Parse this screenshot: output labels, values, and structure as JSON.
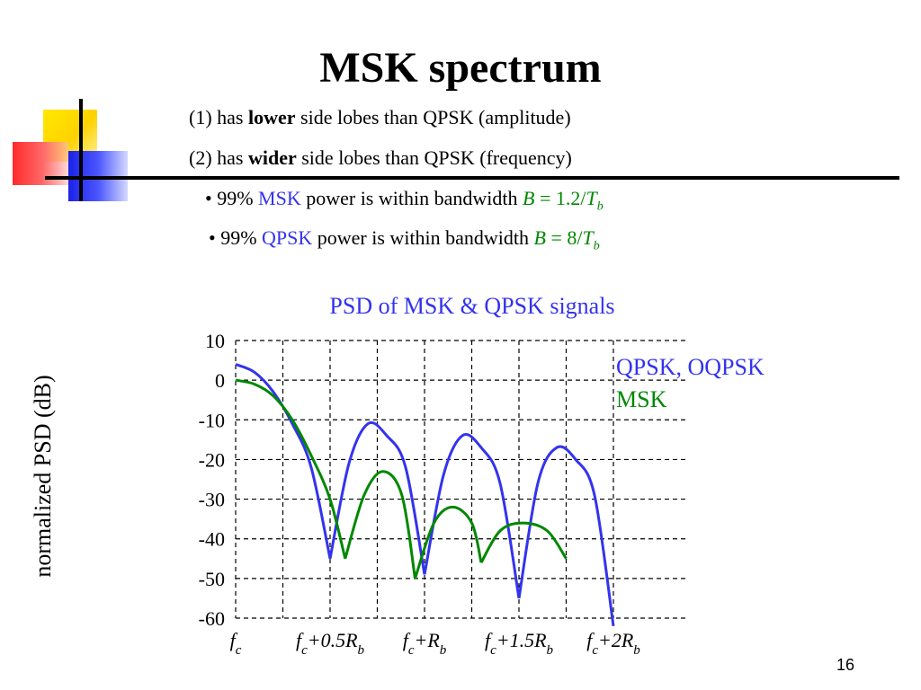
{
  "slide": {
    "title": "MSK spectrum",
    "page_number": "16"
  },
  "bullets": {
    "line1": {
      "pre": "(1) has ",
      "bold": "lower",
      "post": " side lobes than QPSK (amplitude)"
    },
    "line2": {
      "pre": "(2) has ",
      "bold": "wider",
      "post": " side lobes than QPSK (frequency)"
    },
    "line3": {
      "pre": "• 99% ",
      "mod": "MSK",
      "mid": " power is within bandwidth ",
      "eq_b": "B",
      "eq": " = 1.2/",
      "eq_t": "T",
      "eq_sub": "b"
    },
    "line4": {
      "pre": "• 99% ",
      "mod": "QPSK",
      "mid": " power is within bandwidth  ",
      "eq_b": "B",
      "eq": " = 8/",
      "eq_t": "T",
      "eq_sub": "b"
    }
  },
  "colors": {
    "qpsk": "#3333ee",
    "msk": "#008800",
    "grid": "#000000"
  },
  "chart_data": {
    "type": "line",
    "title": "PSD of MSK & QPSK signals",
    "ylabel": "normalized PSD (dB)",
    "xlabel": "",
    "ylim": [
      -60,
      10
    ],
    "xlim": [
      0,
      2
    ],
    "yticks": [
      10,
      0,
      -10,
      -20,
      -30,
      -40,
      -50,
      -60
    ],
    "xticks": [
      {
        "value": 0,
        "main": "f",
        "sub": "c",
        "tail": "",
        "tail_main": "",
        "tail_sub": ""
      },
      {
        "value": 0.5,
        "main": "f",
        "sub": "c",
        "tail": "+0.5",
        "tail_main": "R",
        "tail_sub": "b"
      },
      {
        "value": 1.0,
        "main": "f",
        "sub": "c",
        "tail": "+",
        "tail_main": "R",
        "tail_sub": "b"
      },
      {
        "value": 1.5,
        "main": "f",
        "sub": "c",
        "tail": "+1.5",
        "tail_main": "R",
        "tail_sub": "b"
      },
      {
        "value": 2.0,
        "main": "f",
        "sub": "c",
        "tail": "+2",
        "tail_main": "R",
        "tail_sub": "b"
      }
    ],
    "grid": true,
    "legend_position": "top-right",
    "series": [
      {
        "name": "QPSK, OQPSK",
        "key": "qpsk",
        "points": [
          [
            0,
            4
          ],
          [
            0.1,
            2
          ],
          [
            0.2,
            -3
          ],
          [
            0.3,
            -11
          ],
          [
            0.4,
            -22
          ],
          [
            0.5,
            -45
          ],
          [
            0.6,
            -21
          ],
          [
            0.7,
            -11
          ],
          [
            0.8,
            -14
          ],
          [
            0.9,
            -22
          ],
          [
            1.0,
            -49
          ],
          [
            1.1,
            -24
          ],
          [
            1.2,
            -14
          ],
          [
            1.3,
            -17
          ],
          [
            1.4,
            -26
          ],
          [
            1.5,
            -55
          ],
          [
            1.6,
            -26
          ],
          [
            1.7,
            -17
          ],
          [
            1.8,
            -20
          ],
          [
            1.9,
            -29
          ],
          [
            2.0,
            -62
          ]
        ]
      },
      {
        "name": "MSK",
        "key": "msk",
        "points": [
          [
            0,
            0
          ],
          [
            0.1,
            -1
          ],
          [
            0.2,
            -4
          ],
          [
            0.3,
            -10
          ],
          [
            0.4,
            -19
          ],
          [
            0.5,
            -30
          ],
          [
            0.58,
            -45
          ],
          [
            0.68,
            -29
          ],
          [
            0.78,
            -23
          ],
          [
            0.88,
            -29
          ],
          [
            0.95,
            -50
          ],
          [
            1.05,
            -36
          ],
          [
            1.15,
            -32
          ],
          [
            1.25,
            -36
          ],
          [
            1.3,
            -46
          ],
          [
            1.4,
            -38
          ],
          [
            1.52,
            -36
          ],
          [
            1.65,
            -38
          ],
          [
            1.75,
            -45
          ]
        ]
      }
    ]
  }
}
